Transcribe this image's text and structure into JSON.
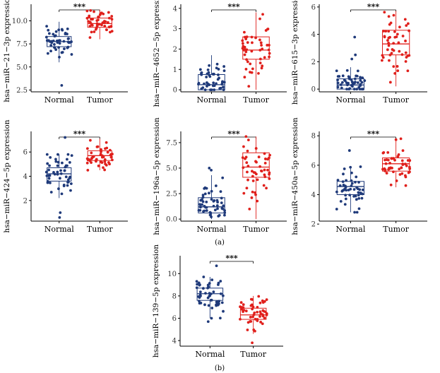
{
  "figure": {
    "panel_labels": [
      "(a)",
      "(b)"
    ],
    "colors": {
      "normal": "#1f3a7a",
      "tumor": "#e0201c",
      "axis": "#000000"
    }
  },
  "chart_data": [
    {
      "type": "box",
      "id": "mir-21-3p",
      "ylabel": "hsa−miR−21−3p expression",
      "categories": [
        "Normal",
        "Tumor"
      ],
      "ylim": [
        2.3,
        11.8
      ],
      "yticks": [
        2.5,
        5.0,
        7.5,
        10.0
      ],
      "ytick_labels": [
        "2.5",
        "5.0",
        "7.5",
        "10.0"
      ],
      "significance": "***",
      "boxes": [
        {
          "name": "Normal",
          "q1": 7.2,
          "median": 7.75,
          "q3": 8.3,
          "whisker_low": 5.5,
          "whisker_high": 9.9,
          "mean": 7.7,
          "sd": 0.95,
          "n": 50,
          "outliers": [
            3.0
          ]
        },
        {
          "name": "Tumor",
          "q1": 9.3,
          "median": 9.7,
          "q3": 10.3,
          "whisker_low": 8.0,
          "whisker_high": 11.2,
          "mean": 9.75,
          "sd": 0.65,
          "n": 50,
          "outliers": []
        }
      ]
    },
    {
      "type": "box",
      "id": "mir-4652-5p",
      "ylabel": "hsa−miR−4652−5p expression",
      "categories": [
        "Normal",
        "Tumor"
      ],
      "ylim": [
        -0.1,
        4.2
      ],
      "yticks": [
        0,
        1,
        2,
        3,
        4
      ],
      "ytick_labels": [
        "0",
        "1",
        "2",
        "3",
        "4"
      ],
      "significance": "***",
      "boxes": [
        {
          "name": "Normal",
          "q1": 0.0,
          "median": 0.25,
          "q3": 0.75,
          "whisker_low": 0.0,
          "whisker_high": 1.7,
          "mean": 0.45,
          "sd": 0.45,
          "n": 50,
          "outliers": []
        },
        {
          "name": "Tumor",
          "q1": 1.5,
          "median": 1.95,
          "q3": 2.6,
          "whisker_low": 0.0,
          "whisker_high": 3.8,
          "mean": 2.0,
          "sd": 0.8,
          "n": 50,
          "outliers": []
        }
      ]
    },
    {
      "type": "box",
      "id": "mir-615-3p",
      "ylabel": "hsa−miR−615−3p expression",
      "categories": [
        "Normal",
        "Tumor"
      ],
      "ylim": [
        -0.2,
        6.2
      ],
      "yticks": [
        0,
        2,
        4,
        6
      ],
      "ytick_labels": [
        "0",
        "2",
        "4",
        "6"
      ],
      "significance": "***",
      "boxes": [
        {
          "name": "Normal",
          "q1": 0.0,
          "median": 0.3,
          "q3": 0.75,
          "whisker_low": 0.0,
          "whisker_high": 1.6,
          "mean": 0.45,
          "sd": 0.45,
          "n": 50,
          "outliers": [
            2.2,
            2.5,
            3.8
          ]
        },
        {
          "name": "Tumor",
          "q1": 2.5,
          "median": 3.3,
          "q3": 4.3,
          "whisker_low": 0.2,
          "whisker_high": 5.7,
          "mean": 3.3,
          "sd": 1.2,
          "n": 50,
          "outliers": []
        }
      ]
    },
    {
      "type": "box",
      "id": "mir-424-5p",
      "ylabel": "hsa−miR−424−5p expression",
      "categories": [
        "Normal",
        "Tumor"
      ],
      "ylim": [
        0.3,
        7.7
      ],
      "yticks": [
        2,
        4,
        6
      ],
      "ytick_labels": [
        "2",
        "4",
        "6"
      ],
      "significance": "***",
      "boxes": [
        {
          "name": "Normal",
          "q1": 3.6,
          "median": 4.2,
          "q3": 4.7,
          "whisker_low": 2.2,
          "whisker_high": 5.8,
          "mean": 4.15,
          "sd": 0.85,
          "n": 50,
          "outliers": [
            0.6,
            1.0,
            7.2
          ]
        },
        {
          "name": "Tumor",
          "q1": 5.3,
          "median": 5.7,
          "q3": 6.1,
          "whisker_low": 4.5,
          "whisker_high": 7.1,
          "mean": 5.7,
          "sd": 0.55,
          "n": 50,
          "outliers": []
        }
      ]
    },
    {
      "type": "box",
      "id": "mir-196a-5p",
      "ylabel": "hsa−miR−196a−5p expression",
      "categories": [
        "Normal",
        "Tumor"
      ],
      "ylim": [
        -0.2,
        8.6
      ],
      "yticks": [
        0.0,
        2.5,
        5.0,
        7.5
      ],
      "ytick_labels": [
        "0.0",
        "2.5",
        "5.0",
        "7.5"
      ],
      "significance": "***",
      "boxes": [
        {
          "name": "Normal",
          "q1": 0.6,
          "median": 1.2,
          "q3": 2.1,
          "whisker_low": 0.0,
          "whisker_high": 4.3,
          "mean": 1.4,
          "sd": 1.0,
          "n": 50,
          "outliers": [
            4.8,
            5.0
          ]
        },
        {
          "name": "Tumor",
          "q1": 4.1,
          "median": 5.1,
          "q3": 6.5,
          "whisker_low": 0.0,
          "whisker_high": 8.1,
          "mean": 5.1,
          "sd": 1.6,
          "n": 50,
          "outliers": []
        }
      ]
    },
    {
      "type": "box",
      "id": "mir-450a-5p",
      "ylabel": "hsa−miR−450a−5p expression",
      "categories": [
        "Normal",
        "Tumor"
      ],
      "ylim": [
        2.2,
        8.3
      ],
      "yticks": [
        2,
        4,
        6,
        8
      ],
      "ytick_labels": [
        "2",
        "4",
        "6",
        "8"
      ],
      "significance": "***",
      "boxes": [
        {
          "name": "Normal",
          "q1": 4.0,
          "median": 4.55,
          "q3": 4.9,
          "whisker_low": 2.8,
          "whisker_high": 5.9,
          "mean": 4.45,
          "sd": 0.7,
          "n": 50,
          "outliers": [
            7.0
          ]
        },
        {
          "name": "Tumor",
          "q1": 5.6,
          "median": 6.1,
          "q3": 6.5,
          "whisker_low": 4.5,
          "whisker_high": 7.8,
          "mean": 6.05,
          "sd": 0.6,
          "n": 50,
          "outliers": []
        }
      ]
    },
    {
      "type": "box",
      "id": "mir-139-5p",
      "ylabel": "hsa−miR−139−5p expression",
      "categories": [
        "Normal",
        "Tumor"
      ],
      "ylim": [
        3.5,
        11.6
      ],
      "yticks": [
        4,
        6,
        8,
        10
      ],
      "ytick_labels": [
        "4",
        "6",
        "8",
        "10"
      ],
      "significance": "***",
      "boxes": [
        {
          "name": "Normal",
          "q1": 7.6,
          "median": 8.2,
          "q3": 8.7,
          "whisker_low": 6.0,
          "whisker_high": 9.7,
          "mean": 8.15,
          "sd": 0.8,
          "n": 50,
          "outliers": [
            5.7,
            10.7
          ]
        },
        {
          "name": "Tumor",
          "q1": 5.9,
          "median": 6.3,
          "q3": 6.9,
          "whisker_low": 4.6,
          "whisker_high": 8.0,
          "mean": 6.35,
          "sd": 0.75,
          "n": 50,
          "outliers": [
            3.8
          ]
        }
      ]
    }
  ]
}
